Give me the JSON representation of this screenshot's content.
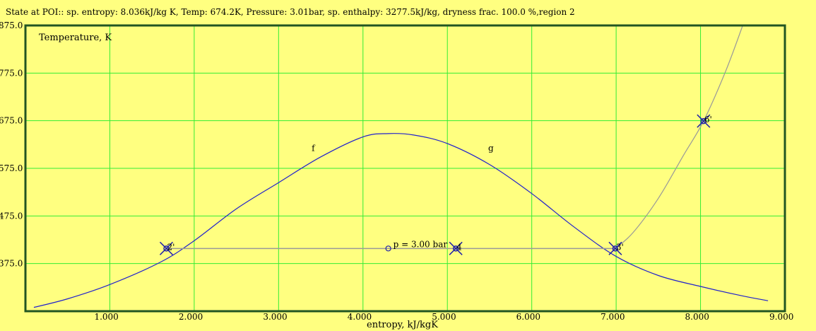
{
  "status_text": "State at POI:: sp. entropy: 8.036kJ/kg K, Temp: 674.2K, Pressure: 3.01bar, sp. enthalpy: 3277.5kJ/kg, dryness frac. 100.0 %,region 2",
  "colors": {
    "background": "#ffff80",
    "grid": "#33ee33",
    "frame": "#225522",
    "dome": "#2222cc",
    "process": "#999999",
    "marker": "#2222aa"
  },
  "chart_data": {
    "type": "line",
    "title": "",
    "ylabel": "Temperature, K",
    "xlabel": "entropy, kJ/kgK",
    "xlim": [
      0,
      9
    ],
    "ylim": [
      275,
      875
    ],
    "grid": true,
    "x_ticks": [
      "1.000",
      "2.000",
      "3.000",
      "4.000",
      "5.000",
      "6.000",
      "7.000",
      "8.000",
      "9.000"
    ],
    "y_ticks": [
      "375.0",
      "475.0",
      "575.0",
      "675.0",
      "775.0",
      "875.0"
    ],
    "series": [
      {
        "id": "saturation-dome",
        "x": [
          0.1,
          0.5,
          1.0,
          1.6,
          2.0,
          2.5,
          3.0,
          3.5,
          4.0,
          4.3,
          4.6,
          5.0,
          5.5,
          6.0,
          6.5,
          7.0,
          7.5,
          8.0,
          8.5,
          8.8
        ],
        "y": [
          283,
          301,
          331,
          378,
          423,
          490,
          545,
          599,
          641,
          648,
          645,
          627,
          583,
          522,
          452,
          390,
          350,
          327,
          307,
          297
        ]
      },
      {
        "id": "isobar-3-bar",
        "x": [
          1.67,
          2.5,
          3.5,
          4.5,
          5.0,
          5.5,
          6.5,
          6.99,
          7.2,
          7.5,
          7.8,
          8.036,
          8.3,
          8.5
        ],
        "y": [
          406.7,
          406.7,
          406.7,
          406.7,
          406.7,
          406.7,
          406.7,
          406.7,
          440,
          512,
          603,
          674.2,
          780,
          875
        ]
      }
    ],
    "points": [
      {
        "label": "2'",
        "x": 1.67,
        "y": 406.7
      },
      {
        "label": "4",
        "x": 5.1,
        "y": 406.7
      },
      {
        "label": "3'",
        "x": 6.99,
        "y": 406.7
      },
      {
        "label": "6'",
        "x": 8.036,
        "y": 674.2
      }
    ],
    "markers": [
      {
        "label": "",
        "x": 4.3,
        "y": 406.7
      }
    ],
    "annotations": [
      {
        "text": "p = 3.00 bar",
        "x": 4.3,
        "y": 406.7
      },
      {
        "text": "f",
        "x": 3.4,
        "y": 610
      },
      {
        "text": "g",
        "x": 5.5,
        "y": 610
      }
    ]
  }
}
